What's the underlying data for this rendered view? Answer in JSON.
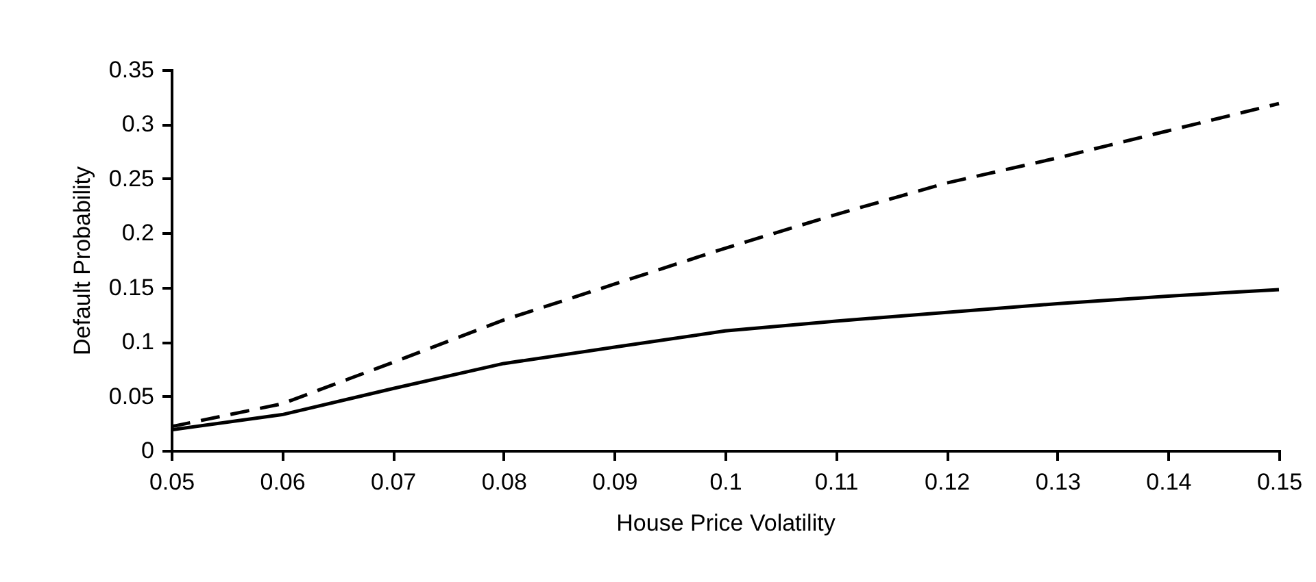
{
  "chart_data": {
    "type": "line",
    "xlabel": "House Price Volatility",
    "ylabel": "Default Probability",
    "x": [
      0.05,
      0.06,
      0.07,
      0.08,
      0.09,
      0.1,
      0.11,
      0.12,
      0.13,
      0.14,
      0.15
    ],
    "series": [
      {
        "color": "#000000",
        "line_style": "solid",
        "values": [
          0.019,
          0.033,
          0.057,
          0.08,
          0.095,
          0.11,
          0.119,
          0.127,
          0.135,
          0.142,
          0.148
        ]
      },
      {
        "color": "#000000",
        "line_style": "dashed",
        "values": [
          0.022,
          0.043,
          0.081,
          0.12,
          0.153,
          0.186,
          0.217,
          0.246,
          0.269,
          0.294,
          0.319
        ]
      }
    ],
    "xlim": [
      0.05,
      0.15
    ],
    "xticks": [
      0.05,
      0.06,
      0.07,
      0.08,
      0.09,
      0.1,
      0.11,
      0.12,
      0.13,
      0.14,
      0.15
    ],
    "ylim": [
      0,
      0.35
    ],
    "yticks": [
      0,
      0.05,
      0.1,
      0.15,
      0.2,
      0.25,
      0.3,
      0.35
    ],
    "grid": false,
    "marker": "none"
  }
}
